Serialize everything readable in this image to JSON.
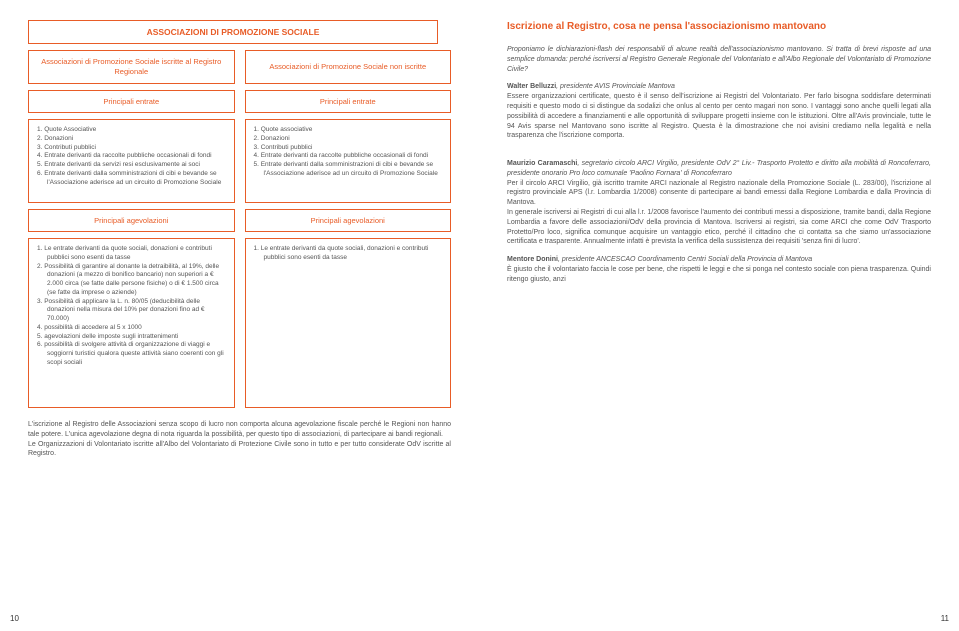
{
  "colors": {
    "accent": "#e85c27",
    "text": "#555555",
    "bg": "#ffffff"
  },
  "left": {
    "mainTitle": "ASSOCIAZIONI DI PROMOZIONE SOCIALE",
    "colA": {
      "sub": "Associazioni di Promozione Sociale iscritte al Registro Regionale",
      "h1": "Principali entrate",
      "list1": [
        "1. Quote Associative",
        "2. Donazioni",
        "3. Contributi pubblici",
        "4. Entrate derivanti da raccolte pubbliche occasionali di fondi",
        "5. Entrate derivanti da servizi resi esclusivamente ai soci",
        "6. Entrate derivanti dalla somministrazioni di cibi e bevande se l'Associazione aderisce ad un circuito di Promozione Sociale"
      ],
      "h2": "Principali agevolazioni",
      "list2": [
        "1. Le entrate derivanti da quote sociali, donazioni e contributi pubblici sono esenti da tasse",
        "2. Possibilità di garantire al donante la detraibilità, al 19%, delle donazioni (a mezzo di bonifico bancario) non superiori a € 2.000 circa (se fatte dalle persone fisiche) o di € 1.500 circa (se fatte da imprese o aziende)",
        "3. Possibilità di applicare la L. n. 80/05 (deducibilità delle donazioni nella misura del 10% per donazioni fino ad € 70.000)",
        "4. possibilità di accedere al 5 x 1000",
        "5. agevolazioni delle imposte sugli intrattenimenti",
        "6. possibilità di svolgere attività di organizzazione di viaggi e soggiorni turistici qualora queste attività siano coerenti con gli scopi sociali"
      ]
    },
    "colB": {
      "sub": "Associazioni di Promozione Sociale non iscritte",
      "h1": "Principali entrate",
      "list1": [
        "1. Quote associative",
        "2. Donazioni",
        "3. Contributi pubblici",
        "4. Entrate derivanti da raccolte pubbliche occasionali di fondi",
        "5. Entrate derivanti dalla somministrazioni di cibi e bevande se l'Associazione aderisce ad un circuito di Promozione Sociale"
      ],
      "h2": "Principali agevolazioni",
      "list2": [
        "1. Le entrate derivanti da quote sociali, donazioni e contributi pubblici sono esenti da tasse"
      ]
    },
    "bottomPara": "L'iscrizione al Registro delle Associazioni senza scopo di lucro non comporta alcuna agevolazione fiscale perché le Regioni non hanno tale potere. L'unica agevolazione degna di nota riguarda la possibilità, per questo tipo di associazioni, di partecipare ai bandi regionali.\nLe Organizzazioni di Volontariato iscritte all'Albo del Volontariato di Protezione Civile sono in tutto e per tutto considerate OdV iscritte al Registro.",
    "pageNum": "10"
  },
  "right": {
    "heading": "Iscrizione al Registro, cosa ne pensa l'associazionismo mantovano",
    "intro": "Proponiamo le dichiarazioni-flash dei responsabili di alcune realtà dell'associazionismo mantovano. Si tratta di brevi risposte ad una semplice domanda: perché iscriversi al Registro Generale Regionale del Volontariato e all'Albo Regionale del Volontariato di Promozione Civile?",
    "p1name": "Walter Belluzzi",
    "p1role": ", presidente AVIS Provinciale Mantova",
    "p1text": "Essere organizzazioni certificate, questo è il senso dell'iscrizione ai Registri del Volontariato. Per farlo bisogna soddisfare determinati requisiti e questo modo ci si distingue da sodalizi che onlus al cento per cento magari non sono. I vantaggi sono anche quelli legati alla possibilità di accedere a finanziamenti e alle opportunità di sviluppare progetti insieme con le istituzioni. Oltre all'Avis provinciale, tutte le 94 Avis sparse nel Mantovano sono iscritte al Registro. Questa è la dimostrazione che noi avisini crediamo nella legalità e nella trasparenza che l'iscrizione comporta.",
    "p2name": "Maurizio Caramaschi",
    "p2role": ", segretario circolo ARCI Virgilio, presidente OdV 2° Liv.- Trasporto Protetto e diritto alla mobilità di Roncoferraro, presidente onorario Pro loco comunale 'Paolino Fornara' di Roncoferraro",
    "p2text": "Per il circolo ARCI Virgilio, già iscritto tramite ARCI nazionale al Registro nazionale della Promozione Sociale (L. 283/00), l'iscrizione al registro provinciale APS (l.r. Lombardia 1/2008) consente di partecipare ai bandi emessi dalla Regione Lombardia e dalla Provincia di Mantova.\nIn generale iscriversi ai Registri di cui alla l.r. 1/2008 favorisce l'aumento dei contributi messi a disposizione, tramite bandi, dalla Regione Lombardia a favore delle associazioni/OdV della provincia di Mantova. Iscriversi ai registri, sia come ARCI che come OdV Trasporto Protetto/Pro loco, significa comunque acquisire un vantaggio etico, perché il cittadino che ci contatta sa che siamo un'associazione certificata e trasparente. Annualmente infatti è prevista la verifica della sussistenza dei requisiti 'senza fini di lucro'.",
    "p3name": "Mentore Donini",
    "p3role": ", presidente ANCESCAO Coordinamento Centri Sociali della Provincia di Mantova",
    "p3text": "È giusto che il volontariato faccia le cose per bene, che rispetti le leggi e che si ponga nel contesto sociale con piena trasparenza. Quindi ritengo giusto, anzi",
    "pageNum": "11"
  }
}
